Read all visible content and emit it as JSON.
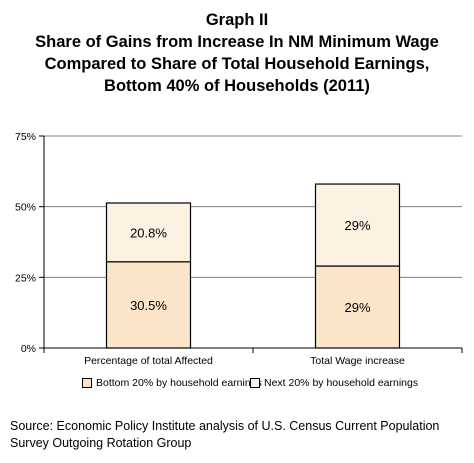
{
  "chart_data": {
    "type": "bar",
    "stacked": true,
    "title_lines": [
      "Graph II",
      "Share of Gains from Increase In NM Minimum Wage",
      "Compared to Share of Total Household Earnings,",
      "Bottom 40% of Households (2011)"
    ],
    "categories": [
      "Percentage of total Affected",
      "Total Wage increase"
    ],
    "series": [
      {
        "name": "Bottom 20% by household earnings",
        "values": [
          30.5,
          29
        ],
        "labels": [
          "30.5%",
          "29%"
        ],
        "color": "#fbe5c8"
      },
      {
        "name": "Next 20% by household earnings",
        "values": [
          20.8,
          29
        ],
        "labels": [
          "20.8%",
          "29%"
        ],
        "color": "#fdf1e2"
      }
    ],
    "ylim": [
      0,
      75
    ],
    "yticks": [
      0,
      25,
      50,
      75
    ],
    "ytick_labels": [
      "0%",
      "25%",
      "50%",
      "75%"
    ],
    "grid": true,
    "legend_position": "bottom"
  },
  "source": "Source: Economic Policy Institute analysis of U.S. Census Current Population Survey Outgoing Rotation Group"
}
